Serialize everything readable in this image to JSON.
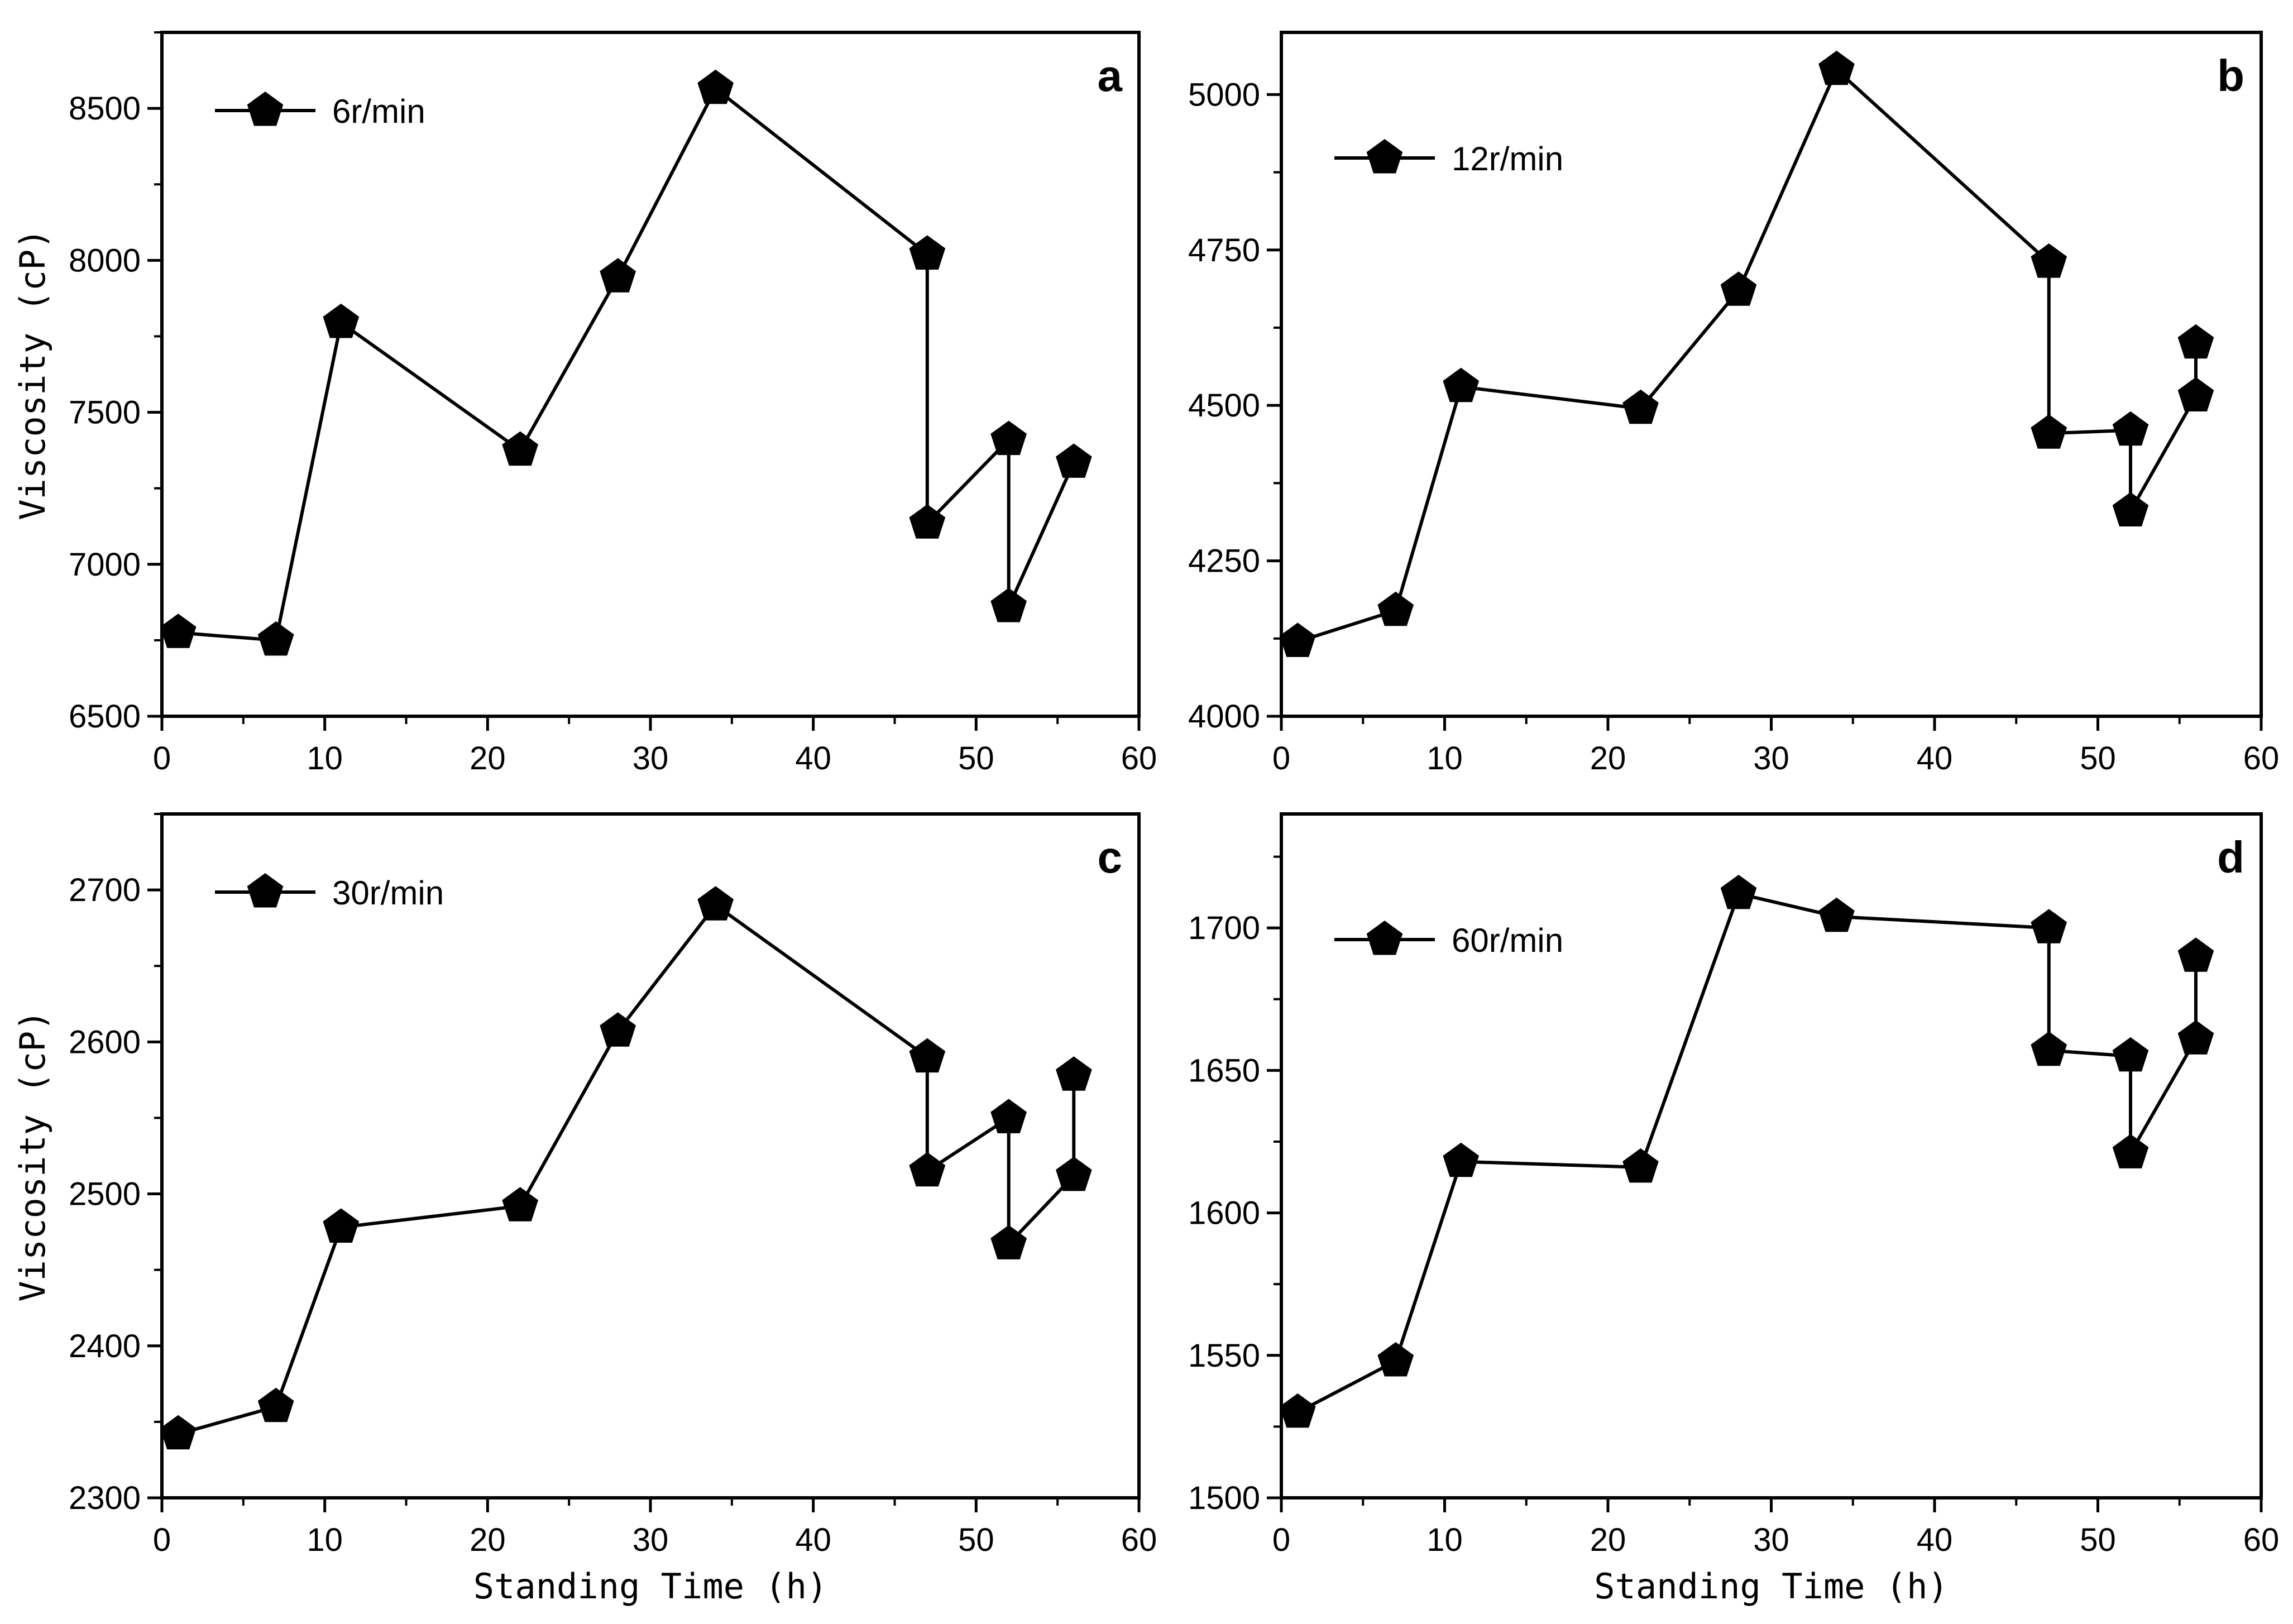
{
  "chart_data": [
    {
      "type": "line",
      "panel_label": "a",
      "series_name": "6r/min",
      "x": [
        1,
        7,
        11,
        22,
        28,
        34,
        47,
        47,
        52,
        52,
        56
      ],
      "y": [
        6775,
        6750,
        7795,
        7375,
        7945,
        8565,
        8020,
        7135,
        7410,
        6860,
        7335
      ],
      "xlim": [
        0,
        60
      ],
      "ylim": [
        6500,
        8750
      ],
      "xticks": [
        0,
        10,
        20,
        30,
        40,
        50,
        60
      ],
      "yticks": [
        6500,
        7000,
        7500,
        8000,
        8500
      ],
      "xlabel": "",
      "ylabel": "Viscosity (cP)",
      "legend_position": "top-left",
      "marker": "pentagon"
    },
    {
      "type": "line",
      "panel_label": "b",
      "series_name": "12r/min",
      "x": [
        1,
        7,
        11,
        22,
        28,
        34,
        47,
        47,
        52,
        52,
        56,
        56
      ],
      "y": [
        4120,
        4170,
        4530,
        4495,
        4685,
        5040,
        4730,
        4455,
        4460,
        4330,
        4515,
        4600
      ],
      "xlim": [
        0,
        60
      ],
      "ylim": [
        4000,
        5100
      ],
      "xticks": [
        0,
        10,
        20,
        30,
        40,
        50,
        60
      ],
      "yticks": [
        4000,
        4250,
        4500,
        4750,
        5000
      ],
      "xlabel": "",
      "ylabel": "",
      "legend_position": "top-left",
      "marker": "pentagon"
    },
    {
      "type": "line",
      "panel_label": "c",
      "series_name": "30r/min",
      "x": [
        1,
        7,
        11,
        22,
        28,
        34,
        47,
        47,
        52,
        52,
        56,
        56
      ],
      "y": [
        2342,
        2360,
        2478,
        2492,
        2607,
        2690,
        2590,
        2515,
        2550,
        2467,
        2512,
        2578
      ],
      "xlim": [
        0,
        60
      ],
      "ylim": [
        2300,
        2750
      ],
      "xticks": [
        0,
        10,
        20,
        30,
        40,
        50,
        60
      ],
      "yticks": [
        2300,
        2400,
        2500,
        2600,
        2700
      ],
      "xlabel": "Standing Time (h)",
      "ylabel": "Viscosity (cP)",
      "legend_position": "top-left",
      "marker": "pentagon"
    },
    {
      "type": "line",
      "panel_label": "d",
      "series_name": "60r/min",
      "x": [
        1,
        7,
        11,
        22,
        28,
        34,
        47,
        47,
        52,
        52,
        56,
        56
      ],
      "y": [
        1530,
        1548,
        1618,
        1616,
        1712,
        1704,
        1700,
        1657,
        1655,
        1621,
        1661,
        1690
      ],
      "xlim": [
        0,
        60
      ],
      "ylim": [
        1500,
        1740
      ],
      "xticks": [
        0,
        10,
        20,
        30,
        40,
        50,
        60
      ],
      "yticks": [
        1500,
        1550,
        1600,
        1650,
        1700
      ],
      "xlabel": "Standing Time (h)",
      "ylabel": "",
      "legend_position": "top-left",
      "marker": "pentagon"
    }
  ]
}
